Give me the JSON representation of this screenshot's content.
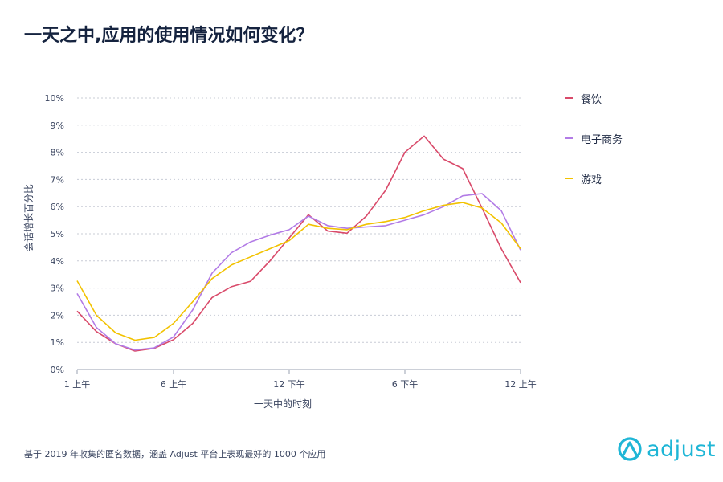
{
  "title": "一天之中,应用的使用情况如何变化？",
  "footnote": "基于 2019 年收集的匿名数据，涵盖 Adjust 平台上表现最好的 1000 个应用",
  "logo": {
    "text": "adjust",
    "color": "#1fb6d6"
  },
  "chart_data": {
    "type": "line",
    "xlabel": "一天中的时刻",
    "ylabel": "会话增长百分比",
    "ylim": [
      0,
      10
    ],
    "y_ticks": [
      "0%",
      "1%",
      "2%",
      "3%",
      "4%",
      "5%",
      "6%",
      "7%",
      "8%",
      "9%",
      "10%"
    ],
    "x_ticks": [
      {
        "hour": 1,
        "label": "1 上午"
      },
      {
        "hour": 6,
        "label": "6 上午"
      },
      {
        "hour": 12,
        "label": "12 下午"
      },
      {
        "hour": 18,
        "label": "6 下午"
      },
      {
        "hour": 24,
        "label": "12 上午"
      }
    ],
    "x": [
      1,
      2,
      3,
      4,
      5,
      6,
      7,
      8,
      9,
      10,
      11,
      12,
      13,
      14,
      15,
      16,
      17,
      18,
      19,
      20,
      21,
      22,
      23,
      24
    ],
    "grid": true,
    "legend_position": "right",
    "series": [
      {
        "name": "餐饮",
        "color": "#d94a6a",
        "values": [
          2.15,
          1.4,
          0.95,
          0.68,
          0.78,
          1.1,
          1.7,
          2.65,
          3.05,
          3.25,
          4.0,
          4.85,
          5.7,
          5.1,
          5.02,
          5.65,
          6.6,
          8.0,
          8.6,
          7.75,
          7.4,
          5.95,
          4.45,
          3.2
        ]
      },
      {
        "name": "电子商务",
        "color": "#b27be6",
        "values": [
          2.8,
          1.55,
          0.95,
          0.72,
          0.8,
          1.2,
          2.2,
          3.55,
          4.3,
          4.7,
          4.95,
          5.15,
          5.65,
          5.3,
          5.2,
          5.25,
          5.3,
          5.5,
          5.7,
          6.0,
          6.4,
          6.48,
          5.85,
          4.4
        ]
      },
      {
        "name": "游戏",
        "color": "#f2c200",
        "values": [
          3.27,
          2.0,
          1.35,
          1.08,
          1.18,
          1.7,
          2.5,
          3.35,
          3.85,
          4.15,
          4.45,
          4.75,
          5.35,
          5.2,
          5.15,
          5.35,
          5.45,
          5.6,
          5.85,
          6.05,
          6.15,
          5.95,
          5.4,
          4.45
        ]
      }
    ]
  }
}
